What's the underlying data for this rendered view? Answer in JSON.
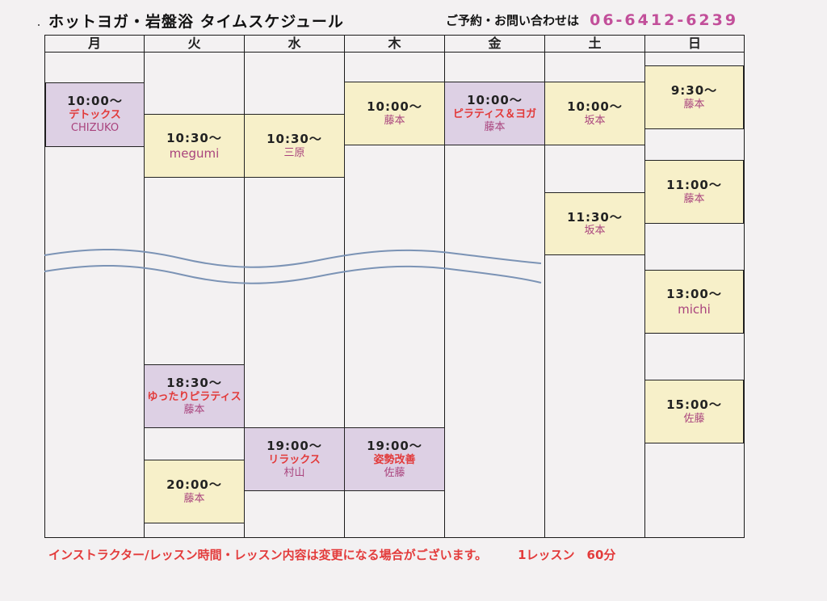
{
  "header": {
    "title": "ホットヨガ・岩盤浴 タイムスケジュール",
    "contact_label": "ご予約・お問い合わせは",
    "phone": "06-6412-6239"
  },
  "days": [
    "月",
    "火",
    "水",
    "木",
    "金",
    "土",
    "日"
  ],
  "colors": {
    "yellow": "#f7f0c9",
    "purple": "#ddd0e4",
    "instructor": "#a9437d",
    "class_name": "#e23a3a",
    "footer": "#e33b3b",
    "wave": "#7b93b5"
  },
  "lessons": {
    "mon_1000": {
      "time": "10:00～",
      "class": "デトックス",
      "instructor": "CHIZUKO"
    },
    "tue_1030": {
      "time": "10:30～",
      "instructor": "megumi"
    },
    "tue_1830": {
      "time": "18:30～",
      "class": "ゆったりピラティス",
      "instructor": "藤本"
    },
    "tue_2000": {
      "time": "20:00～",
      "instructor": "藤本"
    },
    "wed_1030": {
      "time": "10:30～",
      "instructor": "三原"
    },
    "wed_1900": {
      "time": "19:00～",
      "class": "リラックス",
      "instructor": "村山"
    },
    "thu_1000": {
      "time": "10:00～",
      "instructor": "藤本"
    },
    "thu_1900": {
      "time": "19:00～",
      "class": "姿勢改善",
      "instructor": "佐藤"
    },
    "fri_1000": {
      "time": "10:00～",
      "class": "ピラティス＆ヨガ",
      "instructor": "藤本"
    },
    "sat_1000": {
      "time": "10:00～",
      "instructor": "坂本"
    },
    "sat_1130": {
      "time": "11:30～",
      "instructor": "坂本"
    },
    "sun_0930": {
      "time": "9:30～",
      "instructor": "藤本"
    },
    "sun_1100": {
      "time": "11:00～",
      "instructor": "藤本"
    },
    "sun_1300": {
      "time": "13:00～",
      "instructor": "michi"
    },
    "sun_1500": {
      "time": "15:00～",
      "instructor": "佐藤"
    }
  },
  "footer": {
    "notice": "インストラクター/レッスン時間・レッスン内容は変更になる場合がございます。",
    "duration": "1レッスン　60分"
  }
}
